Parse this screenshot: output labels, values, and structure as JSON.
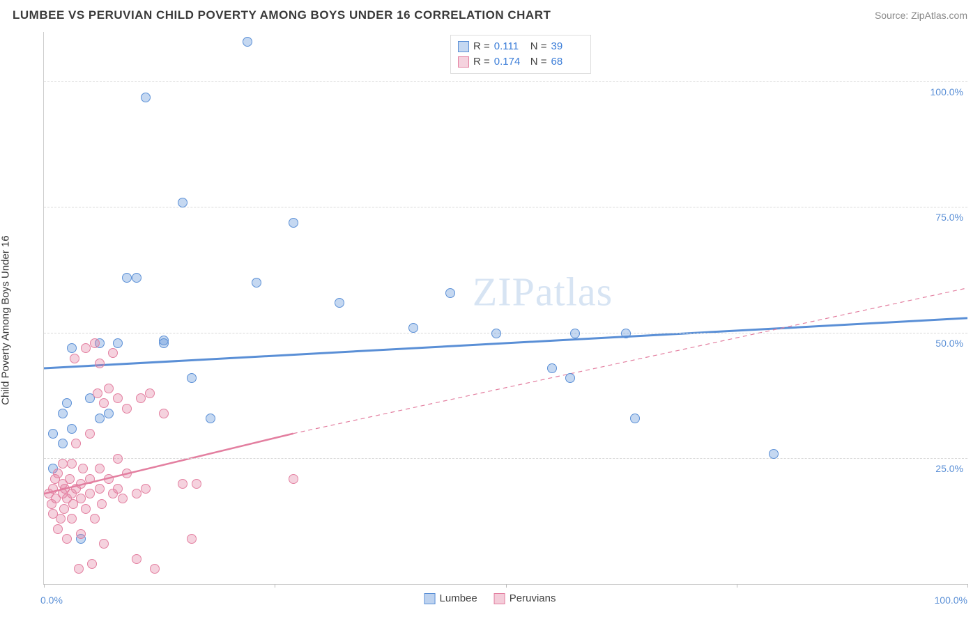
{
  "title": "LUMBEE VS PERUVIAN CHILD POVERTY AMONG BOYS UNDER 16 CORRELATION CHART",
  "source_label": "Source:",
  "source_name": "ZipAtlas.com",
  "ylabel": "Child Poverty Among Boys Under 16",
  "watermark": "ZIPatlas",
  "chart": {
    "type": "scatter",
    "xlim": [
      0,
      100
    ],
    "ylim": [
      0,
      110
    ],
    "background_color": "#ffffff",
    "grid_color": "#d8d8d8",
    "axis_color": "#cfcfcf",
    "tick_color": "#5a8fd6",
    "x_ticks": [
      0,
      25,
      50,
      75,
      100
    ],
    "x_tick_labels": {
      "0": "0.0%",
      "100": "100.0%"
    },
    "y_gridlines": [
      25,
      50,
      75,
      100
    ],
    "y_tick_labels": {
      "25": "25.0%",
      "50": "50.0%",
      "75": "75.0%",
      "100": "100.0%"
    },
    "point_radius": 7,
    "point_fill_opacity": 0.35,
    "point_stroke_width": 1.2,
    "series": [
      {
        "name": "Lumbee",
        "color": "#5a8fd6",
        "fill": "rgba(90,143,214,0.35)",
        "R": "0.111",
        "N": "39",
        "trend": {
          "x1": 0,
          "y1": 43,
          "x2": 100,
          "y2": 53,
          "width": 3,
          "dash": "none"
        },
        "points": [
          [
            1,
            23
          ],
          [
            1,
            30
          ],
          [
            2,
            28
          ],
          [
            2,
            34
          ],
          [
            2.5,
            36
          ],
          [
            3,
            47
          ],
          [
            3,
            31
          ],
          [
            4,
            9
          ],
          [
            5,
            37
          ],
          [
            6,
            48
          ],
          [
            6,
            33
          ],
          [
            7,
            34
          ],
          [
            8,
            48
          ],
          [
            9,
            61
          ],
          [
            10,
            61
          ],
          [
            11,
            97
          ],
          [
            13,
            48
          ],
          [
            13,
            48.5
          ],
          [
            15,
            76
          ],
          [
            16,
            41
          ],
          [
            18,
            33
          ],
          [
            22,
            108
          ],
          [
            23,
            60
          ],
          [
            27,
            72
          ],
          [
            32,
            56
          ],
          [
            40,
            51
          ],
          [
            44,
            58
          ],
          [
            49,
            50
          ],
          [
            55,
            43
          ],
          [
            57,
            41
          ],
          [
            57.5,
            50
          ],
          [
            63,
            50
          ],
          [
            64,
            33
          ],
          [
            79,
            26
          ]
        ]
      },
      {
        "name": "Peruvians",
        "color": "#e37fa0",
        "fill": "rgba(227,127,160,0.35)",
        "R": "0.174",
        "N": "68",
        "trend_solid": {
          "x1": 0,
          "y1": 18,
          "x2": 27,
          "y2": 30,
          "width": 2.5
        },
        "trend_dash": {
          "x1": 27,
          "y1": 30,
          "x2": 100,
          "y2": 59,
          "width": 1.2,
          "dash": "6,5"
        },
        "points": [
          [
            0.5,
            18
          ],
          [
            0.8,
            16
          ],
          [
            1,
            14
          ],
          [
            1,
            19
          ],
          [
            1.2,
            21
          ],
          [
            1.3,
            17
          ],
          [
            1.5,
            11
          ],
          [
            1.5,
            22
          ],
          [
            1.8,
            13
          ],
          [
            2,
            18
          ],
          [
            2,
            20
          ],
          [
            2,
            24
          ],
          [
            2.2,
            15
          ],
          [
            2.3,
            19
          ],
          [
            2.5,
            17
          ],
          [
            2.5,
            9
          ],
          [
            2.8,
            21
          ],
          [
            3,
            18
          ],
          [
            3,
            13
          ],
          [
            3,
            24
          ],
          [
            3.2,
            16
          ],
          [
            3.3,
            45
          ],
          [
            3.5,
            19
          ],
          [
            3.5,
            28
          ],
          [
            3.8,
            3
          ],
          [
            4,
            20
          ],
          [
            4,
            10
          ],
          [
            4,
            17
          ],
          [
            4.2,
            23
          ],
          [
            4.5,
            15
          ],
          [
            4.5,
            47
          ],
          [
            5,
            18
          ],
          [
            5,
            21
          ],
          [
            5,
            30
          ],
          [
            5.2,
            4
          ],
          [
            5.5,
            13
          ],
          [
            5.5,
            48
          ],
          [
            5.8,
            38
          ],
          [
            6,
            19
          ],
          [
            6,
            23
          ],
          [
            6,
            44
          ],
          [
            6.3,
            16
          ],
          [
            6.5,
            36
          ],
          [
            6.5,
            8
          ],
          [
            7,
            21
          ],
          [
            7,
            39
          ],
          [
            7.5,
            18
          ],
          [
            7.5,
            46
          ],
          [
            8,
            19
          ],
          [
            8,
            25
          ],
          [
            8,
            37
          ],
          [
            8.5,
            17
          ],
          [
            9,
            22
          ],
          [
            9,
            35
          ],
          [
            10,
            18
          ],
          [
            10,
            5
          ],
          [
            10.5,
            37
          ],
          [
            11,
            19
          ],
          [
            11.5,
            38
          ],
          [
            12,
            3
          ],
          [
            13,
            34
          ],
          [
            15,
            20
          ],
          [
            16,
            9
          ],
          [
            16.5,
            20
          ],
          [
            27,
            21
          ]
        ]
      }
    ]
  },
  "legend_top_labels": {
    "R": "R =",
    "N": "N ="
  },
  "legend_bottom": [
    {
      "label": "Lumbee",
      "fill": "rgba(90,143,214,0.4)",
      "border": "#5a8fd6"
    },
    {
      "label": "Peruvians",
      "fill": "rgba(227,127,160,0.4)",
      "border": "#e37fa0"
    }
  ]
}
